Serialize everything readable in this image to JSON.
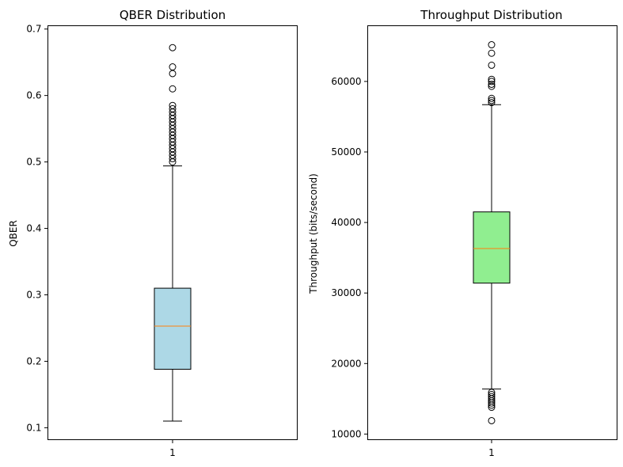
{
  "chart_data": [
    {
      "type": "box",
      "title": "QBER Distribution",
      "xlabel": "",
      "ylabel": "QBER",
      "categories": [
        "1"
      ],
      "ylim": [
        0.082,
        0.705
      ],
      "yticks": [
        0.1,
        0.2,
        0.3,
        0.4,
        0.5,
        0.6,
        0.7
      ],
      "ytick_labels": [
        "0.1",
        "0.2",
        "0.3",
        "0.4",
        "0.5",
        "0.6",
        "0.7"
      ],
      "box": {
        "whisker_low": 0.11,
        "q1": 0.188,
        "median": 0.253,
        "q3": 0.31,
        "whisker_high": 0.494
      },
      "outliers": [
        0.5,
        0.505,
        0.51,
        0.515,
        0.52,
        0.525,
        0.53,
        0.535,
        0.54,
        0.545,
        0.55,
        0.555,
        0.56,
        0.565,
        0.57,
        0.575,
        0.58,
        0.585,
        0.61,
        0.633,
        0.643,
        0.672
      ],
      "box_color": "#add8e6",
      "median_color": "#ff7f0e",
      "grid": false
    },
    {
      "type": "box",
      "title": "Throughput Distribution",
      "xlabel": "",
      "ylabel": "Throughput (bits/second)",
      "categories": [
        "1"
      ],
      "ylim": [
        9200,
        67900
      ],
      "yticks": [
        10000,
        20000,
        30000,
        40000,
        50000,
        60000
      ],
      "ytick_labels": [
        "10000",
        "20000",
        "30000",
        "40000",
        "50000",
        "60000"
      ],
      "box": {
        "whisker_low": 16400,
        "q1": 31400,
        "median": 36300,
        "q3": 41500,
        "whisker_high": 56700
      },
      "outliers": [
        11900,
        13800,
        14100,
        14400,
        14700,
        15000,
        15300,
        15600,
        15900,
        57000,
        57300,
        57600,
        59300,
        59600,
        60000,
        60300,
        62300,
        64000,
        65200
      ],
      "box_color": "#90ee90",
      "median_color": "#ff7f0e",
      "grid": false
    }
  ]
}
